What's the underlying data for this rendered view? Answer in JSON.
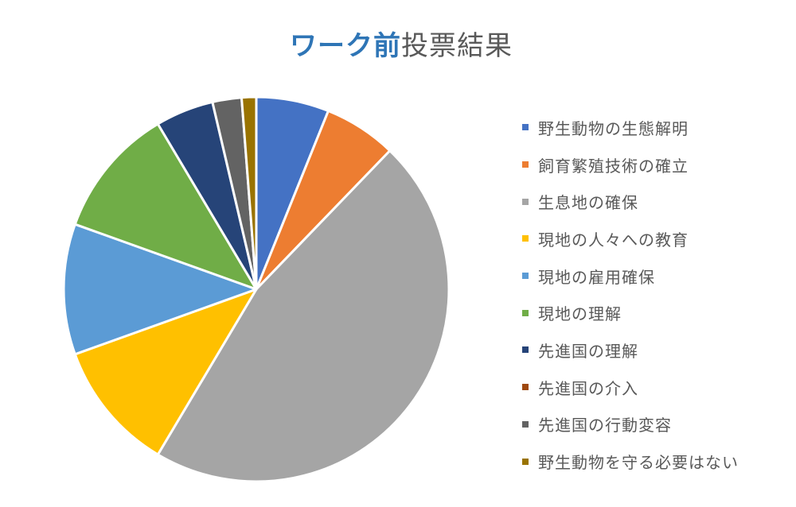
{
  "chart_data": {
    "type": "pie",
    "title": "ワーク前投票結果",
    "title_parts": {
      "highlight": "ワーク前",
      "rest": "投票結果"
    },
    "categories": [
      "野生動物の生態解明",
      "飼育繁殖技術の確立",
      "生息地の確保",
      "現地の人々への教育",
      "現地の雇用確保",
      "現地の理解",
      "先進国の理解",
      "先進国の介入",
      "先進国の行動変容",
      "野生動物を守る必要はない"
    ],
    "values": [
      5,
      5,
      38,
      9,
      9,
      9,
      4,
      0,
      2,
      1
    ],
    "colors": [
      "#4472c4",
      "#ed7d31",
      "#a5a5a5",
      "#ffc000",
      "#5b9bd5",
      "#70ad47",
      "#264478",
      "#9e480e",
      "#636363",
      "#997300"
    ],
    "start_angle": 0,
    "direction": "clockwise",
    "legend_position": "right",
    "data_labels": false
  },
  "legend": {
    "items": [
      {
        "label": "野生動物の生態解明",
        "color": "#4472c4"
      },
      {
        "label": "飼育繁殖技術の確立",
        "color": "#ed7d31"
      },
      {
        "label": "生息地の確保",
        "color": "#a5a5a5"
      },
      {
        "label": "現地の人々への教育",
        "color": "#ffc000"
      },
      {
        "label": "現地の雇用確保",
        "color": "#5b9bd5"
      },
      {
        "label": "現地の理解",
        "color": "#70ad47"
      },
      {
        "label": "先進国の理解",
        "color": "#264478"
      },
      {
        "label": "先進国の介入",
        "color": "#9e480e"
      },
      {
        "label": "先進国の行動変容",
        "color": "#636363"
      },
      {
        "label": "野生動物を守る必要はない",
        "color": "#997300"
      }
    ]
  }
}
